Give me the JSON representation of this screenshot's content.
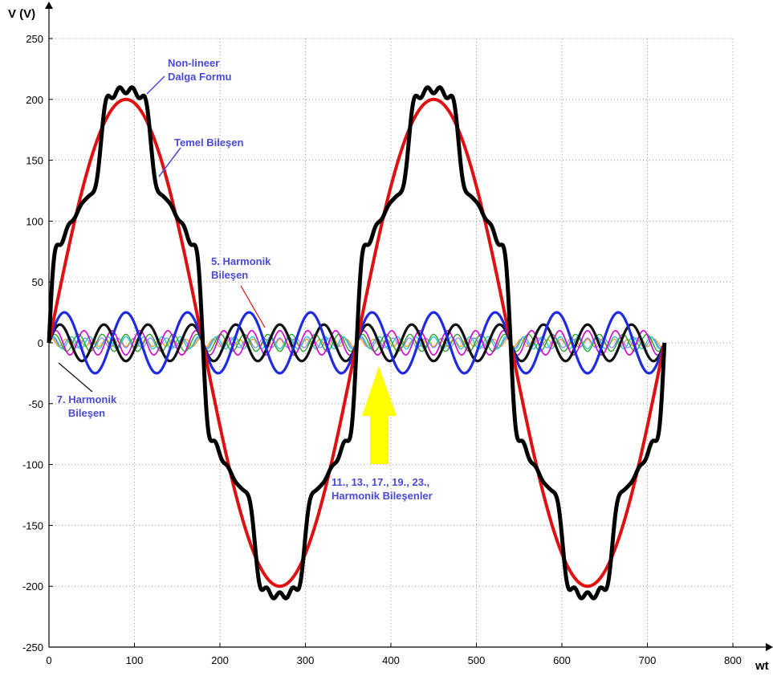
{
  "chart_data": {
    "type": "line",
    "xlabel": "wt",
    "ylabel": "V (V)",
    "xlim": [
      0,
      800
    ],
    "ylim": [
      -250,
      250
    ],
    "x_ticks": [
      0,
      100,
      200,
      300,
      400,
      500,
      600,
      700,
      800
    ],
    "y_ticks": [
      -250,
      -200,
      -150,
      -100,
      -50,
      0,
      50,
      100,
      150,
      200,
      250
    ],
    "grid": true,
    "x_range": [
      0,
      720
    ],
    "series": [
      {
        "id": "fundamental",
        "label": "Temel Bileşen",
        "color": "#e01010",
        "amplitude": 200,
        "harmonic": 1,
        "degrees_per_cycle": 360
      },
      {
        "id": "h5",
        "label": "5. Harmonik Bileşen",
        "color": "#1f2be0",
        "amplitude": 25,
        "harmonic": 5
      },
      {
        "id": "h7",
        "label": "7. Harmonik Bileşen",
        "color": "#111111",
        "amplitude": 15,
        "harmonic": 7
      },
      {
        "id": "h11",
        "color": "#d400d4",
        "amplitude": 10,
        "harmonic": 11
      },
      {
        "id": "h13",
        "color": "#2ea22e",
        "amplitude": 7,
        "harmonic": 13
      },
      {
        "id": "h17",
        "color": "#27c8c8",
        "amplitude": 5,
        "harmonic": 17
      },
      {
        "id": "h19",
        "color": "#8080ff",
        "amplitude": 4,
        "harmonic": 19
      },
      {
        "id": "h23",
        "color": "#ff9900",
        "amplitude": 3,
        "harmonic": 23
      },
      {
        "id": "nonlinear",
        "label": "Non-lineer Dalga Formu",
        "color": "#000000",
        "composition": "sum of all components",
        "peak_max": 230,
        "peak_min": -230
      }
    ],
    "annotations": [
      {
        "id": "nonlinear",
        "lines": [
          "Non-lineer",
          "Dalga Formu"
        ]
      },
      {
        "id": "fundamental",
        "lines": [
          "Temel Bileşen"
        ]
      },
      {
        "id": "h5",
        "lines": [
          "5. Harmonik",
          "Bileşen"
        ]
      },
      {
        "id": "h7",
        "lines": [
          "7. Harmonik",
          "Bileşen"
        ]
      },
      {
        "id": "higher",
        "lines": [
          "11., 13., 17., 19., 23.,",
          "Harmonik Bileşenler"
        ],
        "arrow_color": "#ffff00"
      }
    ]
  }
}
